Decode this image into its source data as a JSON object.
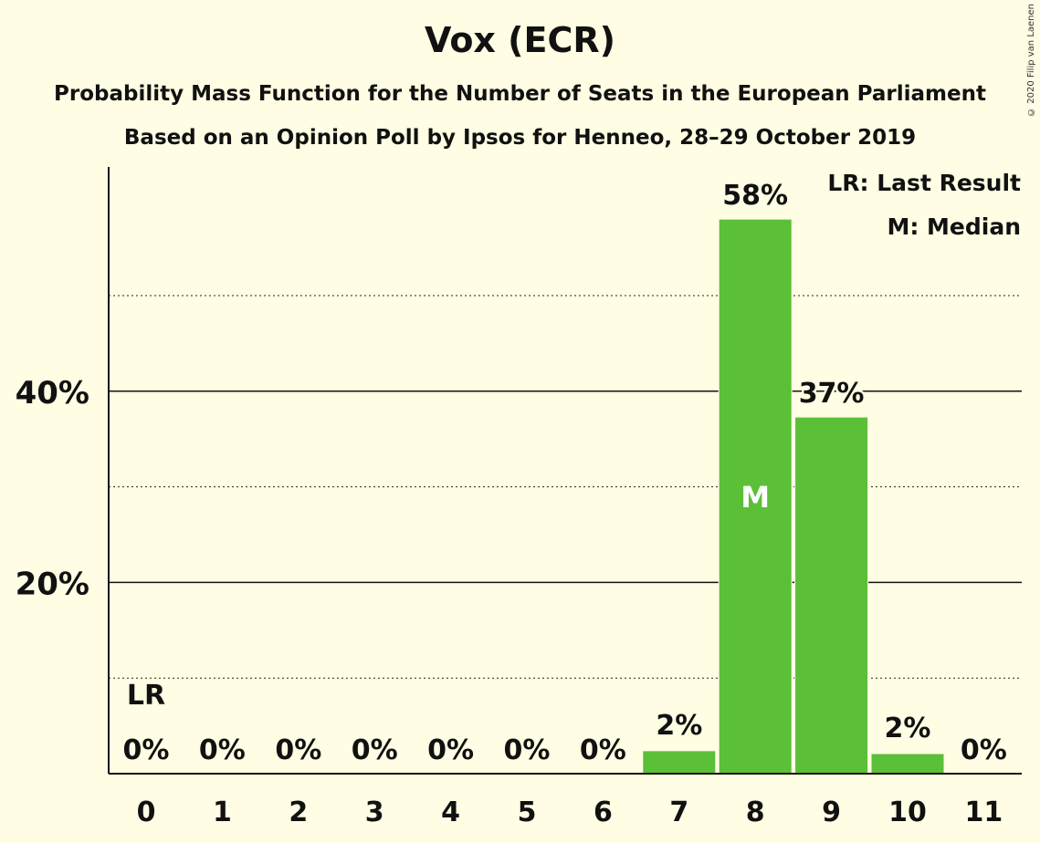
{
  "chart_data": {
    "type": "bar",
    "title": "Vox (ECR)",
    "subtitle_1": "Probability Mass Function for the Number of Seats in the European Parliament",
    "subtitle_2": "Based on an Opinion Poll by Ipsos for Henneo, 28–29 October 2019",
    "copyright": "© 2020 Filip van Laenen",
    "categories": [
      "0",
      "1",
      "2",
      "3",
      "4",
      "5",
      "6",
      "7",
      "8",
      "9",
      "10",
      "11"
    ],
    "values": [
      0,
      0,
      0,
      0,
      0,
      0,
      0,
      2.4,
      58,
      37.3,
      2.1,
      0
    ],
    "value_labels": [
      "0%",
      "0%",
      "0%",
      "0%",
      "0%",
      "0%",
      "0%",
      "2%",
      "58%",
      "37%",
      "2%",
      "0%"
    ],
    "ylim": [
      0,
      63
    ],
    "yticks": [
      20,
      40
    ],
    "ytick_labels": [
      "20%",
      "40%"
    ],
    "minor_gridlines": [
      10,
      30,
      50
    ],
    "last_result_index": 0,
    "last_result_label": "LR",
    "median_index": 8,
    "median_label": "M",
    "legend": [
      "LR: Last Result",
      "M: Median"
    ],
    "legend_position": "top-right",
    "bar_color": "#5BBF37",
    "background_color": "#FFFDE3"
  }
}
